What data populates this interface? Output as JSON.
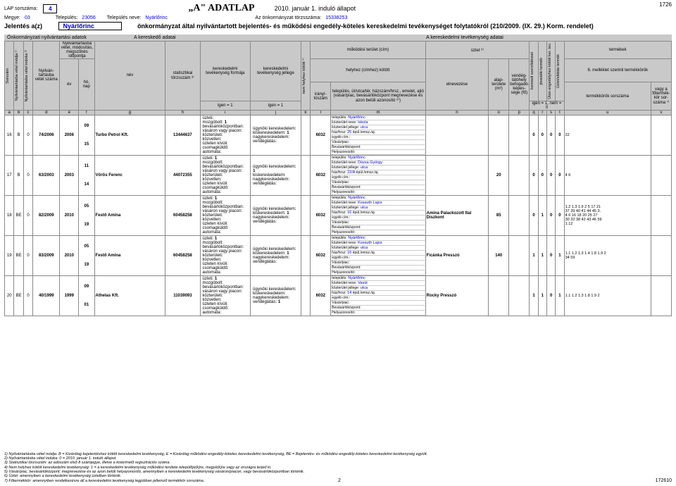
{
  "meta": {
    "lap_sorszama_label": "LAP sorszáma:",
    "lap_sorszama": "4",
    "adatlap_title": "„A\" ADATLAP",
    "date_line": "2010. január 1. induló állapot",
    "top_right": "1726",
    "megye_label": "Megye:",
    "megye": "03",
    "telepules_label": "Település:",
    "telepules": "23056",
    "telepules_neve_label": "Település neve:",
    "telepules_neve": "Nyárlőrinc",
    "torzsszam_label": "Az önkormányzat törzsszáma:",
    "torzsszam": "15338253",
    "jelentes_prefix": "Jelentés a(z)",
    "jelentes_kozseg": "Nyárlőrinc",
    "jelentes_rest": "önkormányzat által nyilvántartott bejelentés- és működési engedély-köteles kereskedelmi tevékenységet folytatókról (210/2009. (IX. 29.) Korm. rendelet)"
  },
  "band": {
    "b1": "Önkormányzati nyilvántartási adatok",
    "b2": "A kereskedő adatai",
    "b3": "A kereskedelmi tevékenység adatai"
  },
  "head": {
    "sorszam": "Sorszám",
    "nybv_modja": "Nyilvántartásba vétel módja ¹⁾",
    "nybv_idoka": "Nyilvántartásba vétel indoka ²⁾",
    "nyilv_szama": "Nyilván-tartásba vétel száma",
    "nyilv_block": "Nyilvántartásba vétel, módosítás, megszűnés időpontja",
    "ev": "év",
    "honap": "hó, nap",
    "nev": "név",
    "stat": "statisztikai törzsszám ³⁾",
    "formaja": "kereskedelmi tevékenység formája",
    "jellege": "kereskedelmi tevékenység jellege",
    "nem_helyhez": "nem helyhez kötött ⁴⁾",
    "mukodesi": "működési terület (cím)",
    "helyhez": "helyhez (címhez) kötött",
    "iranyito": "irányí-tószám",
    "telep_block": "település, út/utca/tér, házszám/hrsz., emelet, ajtó (vásár/piac, bevásárlóközpont megnevezése és azon belüli azonosító ⁵⁾)",
    "uzlet": "üzlet ⁶⁾",
    "elnevezese": "elnevezése",
    "alap": "alap-területe (m²)",
    "vendeg": "vendég-látóhely befogadó-képes-sége (fő)",
    "kereset": "kereseti szerződéssel",
    "jovedeki": "jövedéki termék",
    "uton_eng": "Úton engedélyhez kötött ker. tev.",
    "uzlatland": "Üzlet/ellátás termék",
    "termekek": "termékek",
    "mell6": "6. melléklet szerinti termékkörök",
    "termekkorok": "termékkörök sorszáma",
    "vagy": "vagy a főtermék-kör sor-száma ⁷⁾",
    "igen1": "igen = 1",
    "igennem": "igen = 1, nem = 0"
  },
  "letters": [
    "a",
    "b",
    "c",
    "d",
    "e",
    "f",
    "g",
    "h",
    "i",
    "j",
    "k",
    "l",
    "m",
    "n",
    "o",
    "p",
    "q",
    "r",
    "s",
    "t",
    "u",
    "v"
  ],
  "form_labels": {
    "uzleti": "üzleti:",
    "mozgobolt": "mozgóbolt:",
    "bevkozp": "bevásárlóközpontban:",
    "vasaron": "vásáron vagy piacon:",
    "kozteruleti": "közterületi:",
    "kozvetlen": "közvetlen:",
    "uzleten_kivuli": "üzleten kívüli:",
    "csomagkuldo": "csomagküldő:",
    "automata": "automata:",
    "ugynoki": "ügynöki kereskedelem:",
    "kisker": "kiskereskedelem:",
    "nagyker": "nagykereskedelem:",
    "vendeglatas": "vendéglátás:",
    "telepules_n": "település:",
    "kozterulet_n": "közterület neve:",
    "kozterulet_j": "közterület jellege:",
    "hazhrsz": "ház/hrsz:",
    "egyeb": "egyéb cím.:",
    "vasarpiac": "Vásár/piac:",
    "bevkozpont": "Bevásárlóközpont:",
    "helyazon": "Helyazonosító:",
    "epul": "épül./emsz./aj."
  },
  "rows": [
    {
      "idx": "16",
      "b": "B",
      "c": "0",
      "szam": "74/2006",
      "ev": "2006",
      "honap_top": "09",
      "honap_bot": "15",
      "nev": "Turbo Petrol Kft.",
      "stat": "13444637",
      "mozgobolt": "1",
      "kisker": "1",
      "iranyito": "6032",
      "telepules": "Nyárlőrinc",
      "kozt_nev": "Iskola",
      "kozt_jel": "utca",
      "haz": "25",
      "elnev": "",
      "alap": "",
      "vendeg": "",
      "p": "0",
      "q": "0",
      "r": "0",
      "s": "0",
      "term": "22"
    },
    {
      "idx": "17",
      "b": "B",
      "c": "0",
      "szam": "63/2003",
      "ev": "2003",
      "honap_top": "11",
      "honap_bot": "14",
      "nev": "Vörös Ferenc",
      "stat": "44072355",
      "uzleti": "1",
      "ugynoki": "1",
      "iranyito": "6032",
      "telepules": "Nyárlőrinc",
      "kozt_nev": "Dózsa György",
      "kozt_jel": "utca",
      "haz": "22/A",
      "elnev": "",
      "alap": "20",
      "vendeg": "",
      "p": "0",
      "q": "0",
      "r": "0",
      "s": "0",
      "term": "4  6"
    },
    {
      "idx": "18",
      "b": "BE",
      "c": "0",
      "szam": "82/2009",
      "ev": "2010",
      "honap_top": "05",
      "honap_bot": "19",
      "nev": "Festő Amina",
      "stat": "60458258",
      "uzleti": "1",
      "kisker": "1",
      "iranyito": "6032",
      "telepules": "Nyárlőrinc",
      "kozt_nev": "Kossuth Lajos",
      "kozt_jel": "utca",
      "haz": "16",
      "elnev": "Amina Palackozott Ital Diszkont",
      "alap": "85",
      "vendeg": "",
      "p": "0",
      "q": "1",
      "r": "0",
      "s": "0",
      "term_rows": [
        "1.2  1.3  1.9   2   5  17  21",
        "37  39  40  41  44  45   3.",
        " 4   6  16  18  20  25  27",
        "30  32  38  42  43  46  59"
      ],
      "term_r2": "1.12"
    },
    {
      "idx": "19",
      "b": "BE",
      "c": "0",
      "szam": "83/2009",
      "ev": "2010",
      "honap_top": "05",
      "honap_bot": "19",
      "nev": "Festő Amina",
      "stat": "60458258",
      "uzleti": "1",
      "kisker": "1",
      "iranyito": "6032",
      "telepules": "Nyárlőrinc",
      "kozt_nev": "Kossuth Lajos",
      "kozt_jel": "utca",
      "haz": "16",
      "elnev": "Ficánka Presszó",
      "alap": "140",
      "vendeg": "",
      "p": "1",
      "q": "1",
      "r": "0",
      "s": "1",
      "term": "1.1  1.2  1.3  1.4  1.8  1.9   2",
      "term_bot": "34  59"
    },
    {
      "idx": "20",
      "b": "BE",
      "c": "0",
      "szam": "40/1999",
      "ev": "1999",
      "honap_top": "09",
      "honap_bot": "01",
      "nev": "Athelas Kft.",
      "stat": "11039093",
      "uzleti": "1",
      "vendeglatas": "1",
      "iranyito": "6032",
      "telepules": "Nyárlőrinc",
      "kozt_nev": "Vasút",
      "kozt_jel": "utca",
      "haz": "14",
      "elnev": "Rocky Presszó",
      "alap": "",
      "vendeg": "",
      "p": "1",
      "q": "1",
      "r": "0",
      "s": "1",
      "term": "1.1  1.2  1.3  1.8  1.9   2"
    }
  ],
  "footnotes": [
    "1) Nyilvántartásba vétel módja: B = Kizárólag bejelentéshez kötött kereskedelmi tevékenység, E = Kizárólag működési engedély-köteles kereskedelmi tevékenység, BE = Bejelentés- és működési engedély-köteles kereskedelmi tevékenység együtt.",
    "2) Nyilvántartásba vétel indoka: 0 = 2010. január 1. induló állapot.",
    "3) Statisztikai törzsszám: az adószám első 8 számjegye, illetve a kistermelő regisztrációs száma.",
    "4) Nem helyhez kötött kereskedelmi tevékenység: 1 = a kereskedelmi tevékenység működési területe települője(k)re, megyé(k)re vagy az országra terjed ki.",
    "5) Vásár/piac, bevásárlóközpont: megnevezése és az azon belüli helyazonosító, amennyiben a kereskedelmi tevékenység vásáron/piacon, vagy bevásárlóközpontban történik.",
    "6) Üzlet: amennyiben a kereskedelmi tevékenység üzletben történik.",
    "7) Főtermékkör: amennyiben rendelkezésre áll a kereskedelmi tevékenység legjobban jellemző termékkör sorszáma."
  ],
  "page_number": "2",
  "bottom_right": "172610"
}
